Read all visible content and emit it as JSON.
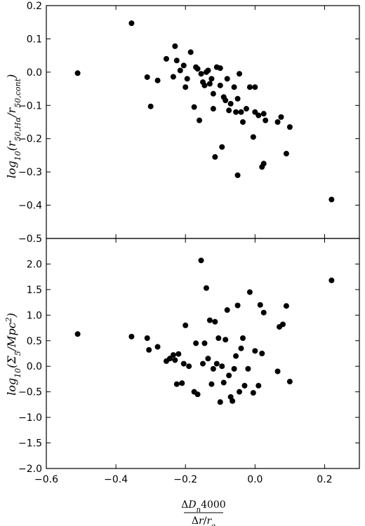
{
  "chart_data": [
    {
      "type": "scatter",
      "ylabel": "log10(r50,Hα / r50,cont)",
      "ylabel_parts": {
        "main": "log",
        "sub1": "10",
        "open": "(r",
        "sub2": "50,Hα",
        "slash": "/r",
        "sub3": "50,cont",
        "close": ")"
      },
      "xlim": [
        -0.6,
        0.3
      ],
      "ylim": [
        -0.5,
        0.2
      ],
      "y_ticks": [
        "0.2",
        "0.1",
        "0.0",
        "−0.1",
        "−0.2",
        "−0.3",
        "−0.4",
        "−0.5"
      ],
      "x": [
        -0.51,
        -0.355,
        -0.31,
        -0.3,
        -0.28,
        -0.255,
        -0.235,
        -0.23,
        -0.225,
        -0.215,
        -0.205,
        -0.2,
        -0.195,
        -0.185,
        -0.175,
        -0.17,
        -0.165,
        -0.16,
        -0.155,
        -0.15,
        -0.145,
        -0.14,
        -0.135,
        -0.13,
        -0.125,
        -0.12,
        -0.115,
        -0.11,
        -0.1,
        -0.095,
        -0.09,
        -0.085,
        -0.08,
        -0.075,
        -0.07,
        -0.06,
        -0.055,
        -0.05,
        -0.045,
        -0.04,
        -0.035,
        -0.025,
        -0.015,
        -0.005,
        0.0,
        0.01,
        0.02,
        0.025,
        0.03,
        0.065,
        0.075,
        0.09,
        0.1,
        0.22,
        -0.1,
        -0.05,
        0.0,
        -0.12,
        0.025
      ],
      "y": [
        -0.003,
        0.147,
        -0.015,
        -0.103,
        -0.025,
        0.04,
        -0.014,
        0.078,
        0.035,
        0.005,
        0.02,
        -0.045,
        -0.02,
        0.06,
        -0.105,
        0.015,
        0.01,
        -0.145,
        -0.005,
        -0.03,
        -0.04,
        0.0,
        0.005,
        -0.035,
        -0.02,
        -0.065,
        -0.255,
        0.015,
        -0.04,
        -0.225,
        -0.075,
        -0.085,
        -0.02,
        -0.115,
        -0.095,
        -0.045,
        -0.12,
        -0.31,
        -0.005,
        -0.12,
        -0.15,
        -0.11,
        -0.045,
        -0.195,
        -0.12,
        -0.13,
        -0.285,
        -0.275,
        -0.145,
        -0.15,
        -0.135,
        -0.245,
        -0.165,
        -0.383,
        0.012,
        -0.08,
        -0.045,
        -0.11,
        -0.125
      ]
    },
    {
      "type": "scatter",
      "ylabel": "log10(Σ5/Mpc²)",
      "ylabel_parts": {
        "main": "log",
        "sub1": "10",
        "open": "(Σ",
        "sub2": "5",
        "slash": "/Mpc",
        "sup": "2",
        "close": ")"
      },
      "xlim": [
        -0.6,
        0.3
      ],
      "ylim": [
        -2.0,
        2.5
      ],
      "y_ticks": [
        "2.0",
        "1.5",
        "1.0",
        "0.5",
        "0.0",
        "−0.5",
        "−1.0",
        "−1.5",
        "−2.0"
      ],
      "x_ticks": [
        "−0.6",
        "−0.4",
        "−0.2",
        "0.0",
        "0.2"
      ],
      "xlabel_parts": {
        "num_delta": "Δ",
        "num_D": "D",
        "num_sub": "n",
        "num_val": "4000",
        "den_delta": "Δ",
        "den_r": "r",
        "den_slash": "/",
        "den_r2": "r",
        "den_sub": "e"
      },
      "x": [
        -0.51,
        -0.355,
        -0.31,
        -0.305,
        -0.28,
        -0.255,
        -0.245,
        -0.235,
        -0.23,
        -0.225,
        -0.22,
        -0.21,
        -0.205,
        -0.2,
        -0.19,
        -0.175,
        -0.17,
        -0.165,
        -0.155,
        -0.15,
        -0.145,
        -0.14,
        -0.135,
        -0.13,
        -0.125,
        -0.12,
        -0.115,
        -0.11,
        -0.105,
        -0.1,
        -0.095,
        -0.09,
        -0.085,
        -0.08,
        -0.075,
        -0.07,
        -0.065,
        -0.06,
        -0.055,
        -0.05,
        -0.045,
        -0.04,
        -0.035,
        -0.03,
        -0.02,
        -0.015,
        -0.005,
        0.0,
        0.01,
        0.015,
        0.02,
        0.025,
        0.065,
        0.07,
        0.08,
        0.09,
        0.1,
        0.22
      ],
      "y": [
        0.63,
        0.58,
        0.55,
        0.32,
        0.38,
        0.1,
        0.15,
        0.22,
        0.12,
        -0.35,
        0.24,
        -0.33,
        0.05,
        0.8,
        0.0,
        -0.5,
        0.45,
        -0.55,
        2.07,
        0.05,
        0.45,
        1.53,
        0.15,
        0.9,
        -0.35,
        -0.05,
        0.87,
        0.05,
        0.55,
        -0.7,
        0.0,
        -0.32,
        0.52,
        1.1,
        -0.18,
        -0.6,
        -0.68,
        -0.05,
        0.2,
        1.19,
        -0.5,
        0.35,
        0.55,
        -0.38,
        -0.05,
        1.45,
        -0.52,
        0.3,
        -0.38,
        1.2,
        0.25,
        1.05,
        -0.1,
        0.77,
        0.82,
        1.18,
        -0.3,
        1.68
      ]
    }
  ]
}
